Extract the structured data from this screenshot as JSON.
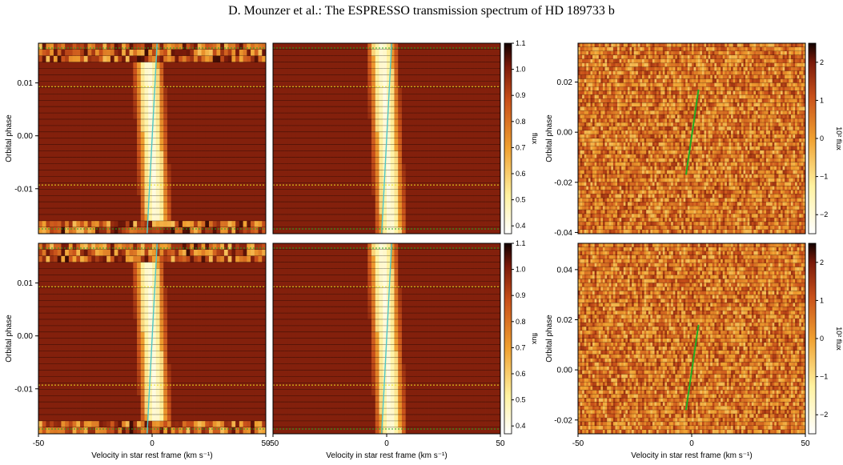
{
  "header": "D. Mounzer et al.: The ESPRESSO transmission spectrum of HD 189733 b",
  "colors": {
    "cmap": [
      "#ffffff",
      "#fff2a0",
      "#f0a030",
      "#c8501a",
      "#7a1a0a",
      "#120200"
    ],
    "model_track": "#4ec8c8",
    "planet_track": "#22aa22",
    "contact_line": "#e8e020"
  },
  "chart_data": [
    {
      "id": "top-left",
      "type": "heatmap",
      "xlabel": "",
      "ylabel": "Orbital phase",
      "xlim": [
        -50,
        50
      ],
      "ylim": [
        -0.0185,
        0.0175
      ],
      "xticks": [],
      "yticks": [
        "0.01",
        "0.00",
        "-0.01"
      ],
      "yticks_values": [
        0.01,
        0.0,
        -0.01
      ],
      "clim": [
        0.37,
        1.1
      ]
    },
    {
      "id": "top-middle",
      "type": "heatmap",
      "xlabel": "",
      "ylabel": "",
      "xlim": [
        -50,
        50
      ],
      "ylim": [
        -0.0185,
        0.0175
      ],
      "xticks": [],
      "yticks": [],
      "colorbar": {
        "label": "flux",
        "ticks": [
          "1.1",
          "1.0",
          "0.9",
          "0.8",
          "0.7",
          "0.6",
          "0.5",
          "0.4"
        ],
        "ticks_values": [
          1.1,
          1.0,
          0.9,
          0.8,
          0.7,
          0.6,
          0.5,
          0.4
        ],
        "range": [
          0.37,
          1.1
        ]
      }
    },
    {
      "id": "top-right",
      "type": "heatmap",
      "xlabel": "",
      "ylabel": "Orbital phase",
      "xlim": [
        -50,
        50
      ],
      "ylim": [
        -0.0405,
        0.0355
      ],
      "xticks": [],
      "yticks": [
        "0.02",
        "0.00",
        "-0.02",
        "-0.04"
      ],
      "yticks_values": [
        0.02,
        0.0,
        -0.02,
        -0.04
      ],
      "colorbar": {
        "label": "10² flux",
        "ticks": [
          "2",
          "1",
          "0",
          "−1",
          "−2"
        ],
        "ticks_values": [
          2,
          1,
          0,
          -1,
          -2
        ],
        "range": [
          -2.5,
          2.5
        ]
      }
    },
    {
      "id": "bottom-left",
      "type": "heatmap",
      "xlabel": "Velocity in star rest frame (km s⁻¹)",
      "ylabel": "Orbital phase",
      "xlim": [
        -50,
        50
      ],
      "ylim": [
        -0.0185,
        0.0175
      ],
      "xticks": [
        "-50",
        "0",
        "50"
      ],
      "xticks_values": [
        -50,
        0,
        50
      ],
      "yticks": [
        "0.01",
        "0.00",
        "-0.01"
      ],
      "yticks_values": [
        0.01,
        0.0,
        -0.01
      ],
      "clim": [
        0.37,
        1.1
      ]
    },
    {
      "id": "bottom-middle",
      "type": "heatmap",
      "xlabel": "Velocity in star rest frame (km s⁻¹)",
      "ylabel": "",
      "xlim": [
        -50,
        50
      ],
      "ylim": [
        -0.0185,
        0.0175
      ],
      "xticks": [
        "-50",
        "0",
        "50"
      ],
      "xticks_values": [
        -50,
        0,
        50
      ],
      "yticks": [],
      "colorbar": {
        "label": "flux",
        "ticks": [
          "1.1",
          "1.0",
          "0.9",
          "0.8",
          "0.7",
          "0.6",
          "0.5",
          "0.4"
        ],
        "ticks_values": [
          1.1,
          1.0,
          0.9,
          0.8,
          0.7,
          0.6,
          0.5,
          0.4
        ],
        "range": [
          0.37,
          1.1
        ]
      }
    },
    {
      "id": "bottom-right",
      "type": "heatmap",
      "xlabel": "Velocity in star rest frame (km s⁻¹)",
      "ylabel": "Orbital phase",
      "xlim": [
        -50,
        50
      ],
      "ylim": [
        -0.0255,
        0.0505
      ],
      "xticks": [
        "-50",
        "0",
        "50"
      ],
      "xticks_values": [
        -50,
        0,
        50
      ],
      "yticks": [
        "0.04",
        "0.02",
        "0.00",
        "-0.02"
      ],
      "yticks_values": [
        0.04,
        0.02,
        0.0,
        -0.02
      ],
      "colorbar": {
        "label": "10² flux",
        "ticks": [
          "2",
          "1",
          "0",
          "−1",
          "−2"
        ],
        "ticks_values": [
          2,
          1,
          0,
          -1,
          -2
        ],
        "range": [
          -2.5,
          2.5
        ]
      }
    }
  ]
}
